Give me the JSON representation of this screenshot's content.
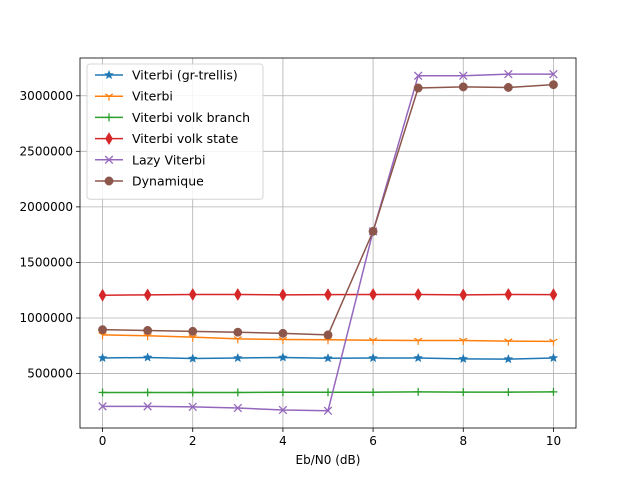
{
  "chart_data": {
    "type": "line",
    "title": "",
    "xlabel": "Eb/N0 (dB)",
    "ylabel": "",
    "xlim": [
      -0.5,
      10.5
    ],
    "ylim": [
      10000,
      3340000
    ],
    "xticks": [
      0,
      2,
      4,
      6,
      8,
      10
    ],
    "yticks": [
      500000,
      1000000,
      1500000,
      2000000,
      2500000,
      3000000
    ],
    "grid": true,
    "legend_position": "upper-left",
    "x": [
      0,
      1,
      2,
      3,
      4,
      5,
      6,
      7,
      8,
      9,
      10
    ],
    "series": [
      {
        "name": "Viterbi (gr-trellis)",
        "color": "#1f77b4",
        "marker": "star",
        "values": [
          640000,
          645000,
          635000,
          640000,
          645000,
          638000,
          640000,
          640000,
          632000,
          630000,
          640000
        ]
      },
      {
        "name": "Viterbi",
        "color": "#ff7f0e",
        "marker": "tri_down",
        "values": [
          848000,
          840000,
          828000,
          812000,
          806000,
          804000,
          800000,
          798000,
          798000,
          792000,
          790000
        ]
      },
      {
        "name": "Viterbi volk branch",
        "color": "#2ca02c",
        "marker": "plus",
        "values": [
          330000,
          330000,
          330000,
          330000,
          332000,
          332000,
          332000,
          335000,
          333000,
          333000,
          335000
        ]
      },
      {
        "name": "Viterbi volk state",
        "color": "#d62728",
        "marker": "thin_diamond",
        "values": [
          1205000,
          1208000,
          1212000,
          1212000,
          1208000,
          1210000,
          1212000,
          1212000,
          1208000,
          1212000,
          1210000
        ]
      },
      {
        "name": "Lazy Viterbi",
        "color": "#9467bd",
        "marker": "x",
        "values": [
          205000,
          205000,
          200000,
          190000,
          172000,
          165000,
          1780000,
          3180000,
          3180000,
          3195000,
          3195000
        ]
      },
      {
        "name": "Dynamique",
        "color": "#8c564b",
        "marker": "circle",
        "values": [
          895000,
          888000,
          880000,
          872000,
          862000,
          848000,
          1780000,
          3070000,
          3080000,
          3075000,
          3100000
        ]
      }
    ]
  }
}
